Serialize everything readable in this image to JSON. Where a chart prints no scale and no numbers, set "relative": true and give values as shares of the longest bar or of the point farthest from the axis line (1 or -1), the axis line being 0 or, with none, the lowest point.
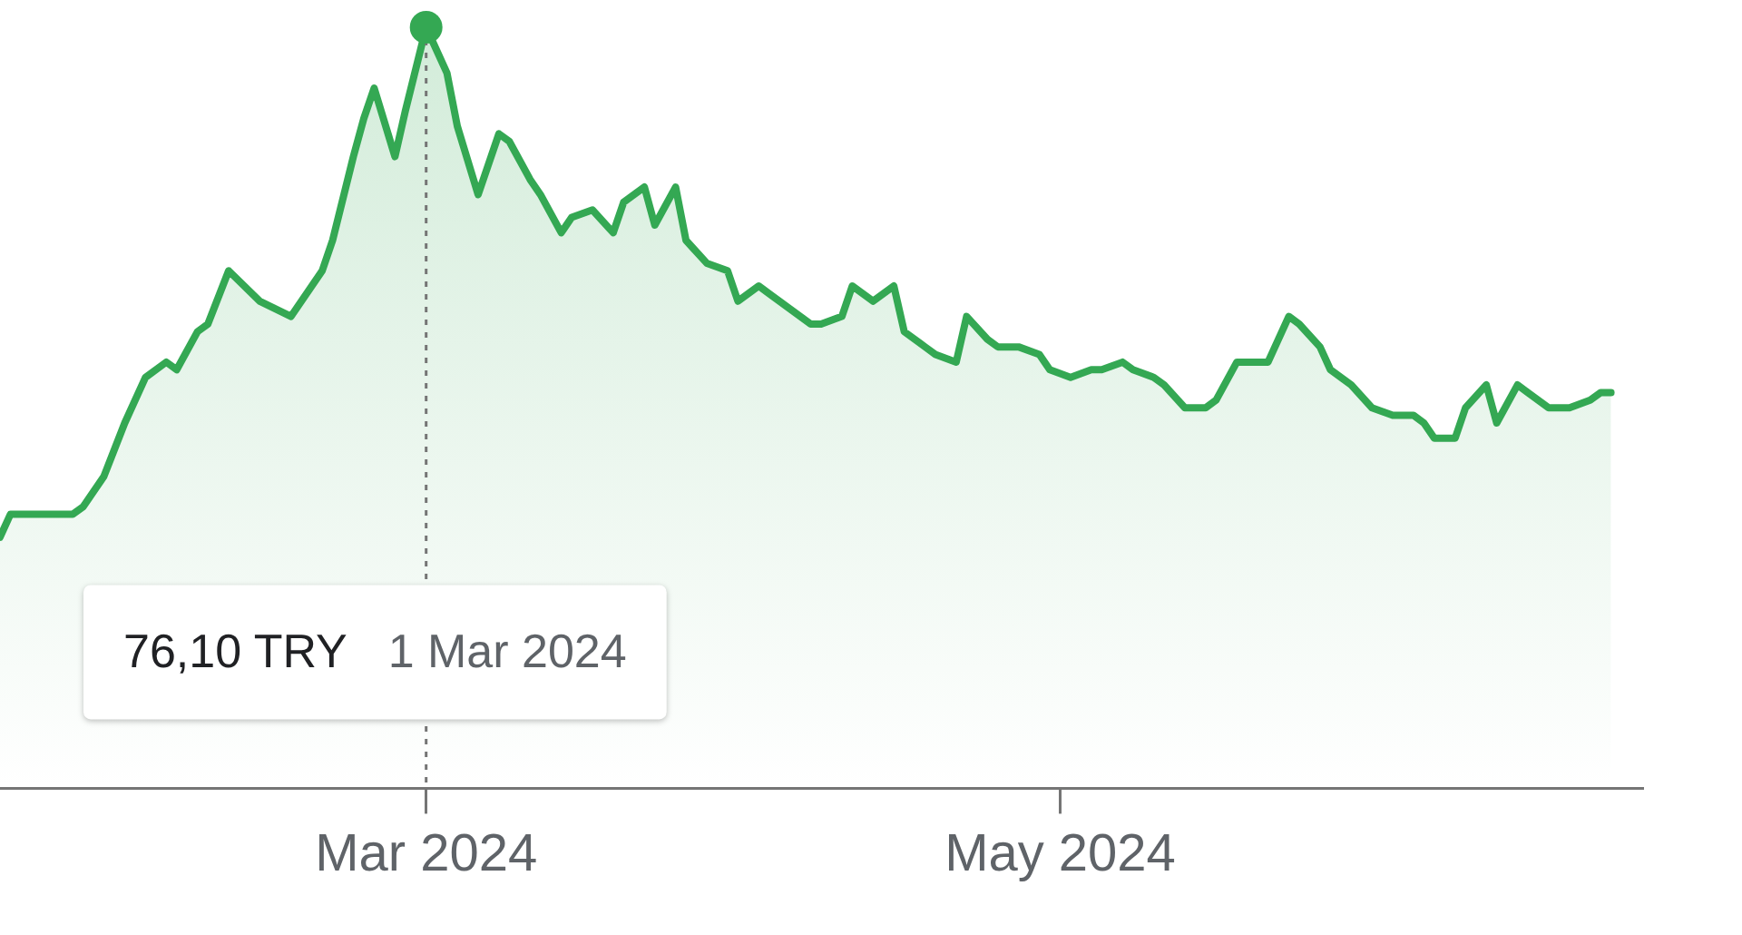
{
  "chart_data": {
    "type": "area",
    "relative": true,
    "legend": false,
    "grid": false,
    "tick_labels": "x",
    "marker": "none",
    "x": [
      "2024-01-20",
      "2024-01-21",
      "2024-01-22",
      "2024-01-23",
      "2024-01-25",
      "2024-01-26",
      "2024-01-27",
      "2024-01-28",
      "2024-01-30",
      "2024-02-01",
      "2024-02-03",
      "2024-02-05",
      "2024-02-06",
      "2024-02-08",
      "2024-02-09",
      "2024-02-11",
      "2024-02-14",
      "2024-02-17",
      "2024-02-20",
      "2024-02-21",
      "2024-02-23",
      "2024-02-24",
      "2024-02-25",
      "2024-02-27",
      "2024-02-28",
      "2024-03-01",
      "2024-03-03",
      "2024-03-04",
      "2024-03-06",
      "2024-03-08",
      "2024-03-09",
      "2024-03-11",
      "2024-03-12",
      "2024-03-14",
      "2024-03-15",
      "2024-03-17",
      "2024-03-19",
      "2024-03-20",
      "2024-03-22",
      "2024-03-23",
      "2024-03-25",
      "2024-03-26",
      "2024-03-28",
      "2024-03-30",
      "2024-03-31",
      "2024-04-02",
      "2024-04-03",
      "2024-04-05",
      "2024-04-07",
      "2024-04-08",
      "2024-04-10",
      "2024-04-11",
      "2024-04-13",
      "2024-04-15",
      "2024-04-16",
      "2024-04-18",
      "2024-04-19",
      "2024-04-21",
      "2024-04-22",
      "2024-04-24",
      "2024-04-25",
      "2024-04-27",
      "2024-04-29",
      "2024-04-30",
      "2024-05-02",
      "2024-05-04",
      "2024-05-05",
      "2024-05-07",
      "2024-05-08",
      "2024-05-10",
      "2024-05-11",
      "2024-05-13",
      "2024-05-15",
      "2024-05-16",
      "2024-05-18",
      "2024-05-21",
      "2024-05-23",
      "2024-05-24",
      "2024-05-26",
      "2024-05-27",
      "2024-05-29",
      "2024-05-31",
      "2024-06-02",
      "2024-06-04",
      "2024-06-05",
      "2024-06-06",
      "2024-06-08",
      "2024-06-09",
      "2024-06-11",
      "2024-06-12",
      "2024-06-14",
      "2024-06-15",
      "2024-06-17",
      "2024-06-19",
      "2024-06-21",
      "2024-06-22",
      "2024-06-23"
    ],
    "series": [
      {
        "color": "#34a853",
        "values": [
          0.33,
          0.36,
          0.36,
          0.36,
          0.36,
          0.36,
          0.36,
          0.37,
          0.41,
          0.48,
          0.54,
          0.56,
          0.55,
          0.6,
          0.61,
          0.68,
          0.64,
          0.62,
          0.68,
          0.72,
          0.83,
          0.88,
          0.92,
          0.83,
          0.89,
          1,
          0.94,
          0.87,
          0.78,
          0.86,
          0.85,
          0.8,
          0.78,
          0.73,
          0.75,
          0.76,
          0.73,
          0.77,
          0.79,
          0.74,
          0.79,
          0.72,
          0.69,
          0.68,
          0.64,
          0.66,
          0.65,
          0.63,
          0.61,
          0.61,
          0.62,
          0.66,
          0.64,
          0.66,
          0.6,
          0.58,
          0.57,
          0.56,
          0.62,
          0.59,
          0.58,
          0.58,
          0.57,
          0.55,
          0.54,
          0.55,
          0.55,
          0.56,
          0.55,
          0.54,
          0.53,
          0.5,
          0.5,
          0.51,
          0.56,
          0.56,
          0.62,
          0.61,
          0.58,
          0.55,
          0.53,
          0.5,
          0.49,
          0.49,
          0.48,
          0.46,
          0.46,
          0.5,
          0.53,
          0.48,
          0.53,
          0.52,
          0.5,
          0.5,
          0.51,
          0.52,
          0.52
        ]
      }
    ],
    "xlim": [
      "2024-01-20",
      "2024-06-26"
    ],
    "xticks": [
      {
        "value": "2024-03-01",
        "label": "Mar 2024"
      },
      {
        "value": "2024-05-01",
        "label": "May 2024"
      }
    ],
    "ref_lines": [
      {
        "axis": "x",
        "value": "2024-03-01",
        "color": "#757575",
        "line_style": "dotted"
      }
    ],
    "annotations": [
      "76,10 TRY",
      "1 Mar 2024"
    ]
  }
}
